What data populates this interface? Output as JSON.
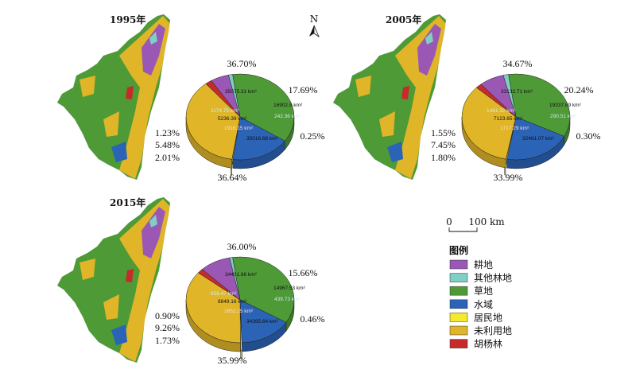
{
  "north_label": "N",
  "scale": {
    "zero": "0",
    "end": "100 km"
  },
  "legend": {
    "title": "图例",
    "items": [
      {
        "key": "cropland",
        "label": "耕地",
        "color": "#9a57b4"
      },
      {
        "key": "other_forest",
        "label": "其他林地",
        "color": "#7fcfc4"
      },
      {
        "key": "grassland",
        "label": "草地",
        "color": "#4e9a36"
      },
      {
        "key": "water",
        "label": "水域",
        "color": "#2b63b6"
      },
      {
        "key": "residential",
        "label": "居民地",
        "color": "#f3ea2f"
      },
      {
        "key": "unused",
        "label": "未利用地",
        "color": "#e0b528"
      },
      {
        "key": "populus",
        "label": "胡杨林",
        "color": "#c62a2a"
      }
    ]
  },
  "panels": [
    {
      "year": "1995年",
      "slices": [
        {
          "key": "grassland",
          "area": "35075.31 km²",
          "pct": "36.70%"
        },
        {
          "key": "water",
          "area": "16902.8 km²",
          "pct": "17.69%"
        },
        {
          "key": "residential",
          "area": "242.36 km²",
          "pct": "0.25%"
        },
        {
          "key": "unused",
          "area": "35016.68 km²",
          "pct": "36.64%"
        },
        {
          "key": "populus",
          "area": "1916.15 km²",
          "pct": "2.01%"
        },
        {
          "key": "cropland",
          "area": "5236.39 km²",
          "pct": "5.48%"
        },
        {
          "key": "other_forest",
          "area": "1174.75 km²",
          "pct": "1.23%"
        }
      ]
    },
    {
      "year": "2005年",
      "slices": [
        {
          "key": "grassland",
          "area": "33132.71 km²",
          "pct": "34.67%"
        },
        {
          "key": "water",
          "area": "19337.89 km²",
          "pct": "20.24%"
        },
        {
          "key": "residential",
          "area": "290.51 km²",
          "pct": "0.30%"
        },
        {
          "key": "unused",
          "area": "32481.07 km²",
          "pct": "33.99%"
        },
        {
          "key": "populus",
          "area": "1717.29 km²",
          "pct": "1.80%"
        },
        {
          "key": "cropland",
          "area": "7123.65 km²",
          "pct": "7.45%"
        },
        {
          "key": "other_forest",
          "area": "1481.32 km²",
          "pct": "1.55%"
        }
      ]
    },
    {
      "year": "2015年",
      "slices": [
        {
          "key": "grassland",
          "area": "34401.66 km²",
          "pct": "36.00%"
        },
        {
          "key": "water",
          "area": "14967.53 km²",
          "pct": "15.66%"
        },
        {
          "key": "residential",
          "area": "439.73 km²",
          "pct": "0.46%"
        },
        {
          "key": "unused",
          "area": "34395.64 km²",
          "pct": "35.99%"
        },
        {
          "key": "populus",
          "area": "1652.25 km²",
          "pct": "1.73%"
        },
        {
          "key": "cropland",
          "area": "8849.16 km²",
          "pct": "9.26%"
        },
        {
          "key": "other_forest",
          "area": "858.47 km²",
          "pct": "0.90%"
        }
      ]
    }
  ]
}
